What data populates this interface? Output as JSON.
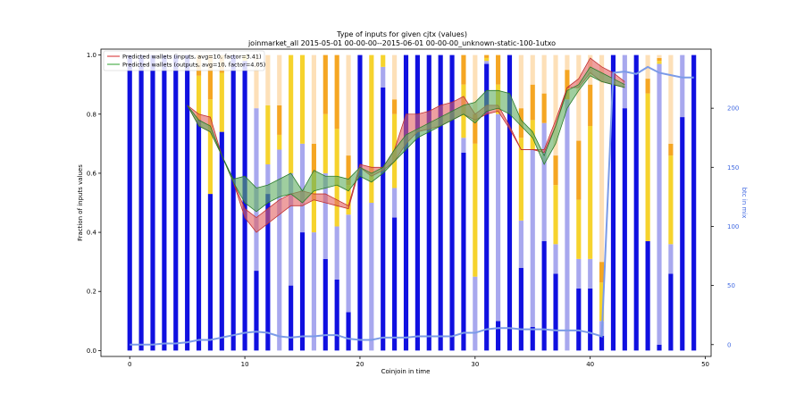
{
  "chart_data": {
    "type": "bar",
    "title": "Type of inputs for given cjtx (values)",
    "subtitle": "joinmarket_all 2015-05-01 00-00-00--2015-06-01 00-00-00_unknown-static-100-1utxo",
    "xlabel": "Coinjoin in time",
    "ylabel": "Fraction of inputs values",
    "ylabel_right": "btc in mix",
    "xlim": [
      -2.5,
      50.5
    ],
    "ylim": [
      -0.02,
      1.02
    ],
    "ylim_right": [
      -10,
      250
    ],
    "x_ticks": [
      0,
      10,
      20,
      30,
      40,
      50
    ],
    "y_ticks": [
      "0.0",
      "0.2",
      "0.4",
      "0.6",
      "0.8",
      "1.0"
    ],
    "y_ticks_right": [
      0,
      50,
      100,
      150,
      200
    ],
    "grid": false,
    "legend_position": "top-left",
    "legend": [
      {
        "label": "Predicted wallets (inputs, avg=10, factor=3.41)",
        "color": "#d62728"
      },
      {
        "label": "Predicted wallets (outputs, avg=10, factor=4.05)",
        "color": "#2ca02c"
      }
    ],
    "colors": {
      "fresh": "#1010e0",
      "remixed": "#a8a8ee",
      "yellow": "#f6d32d",
      "orange": "#f5a623",
      "peach": "#fde0b8",
      "inputs_band": "#e26060",
      "outputs_band": "#5fae5f",
      "btc_line": "#7b9be8"
    },
    "stacked_bars": {
      "series_order": [
        "fresh",
        "remixed",
        "yellow",
        "orange",
        "peach"
      ],
      "data": [
        [
          1.0,
          0,
          0,
          0,
          0
        ],
        [
          1.0,
          0,
          0,
          0,
          0
        ],
        [
          1.0,
          0,
          0,
          0,
          0
        ],
        [
          1.0,
          0,
          0,
          0,
          0
        ],
        [
          1.0,
          0,
          0,
          0,
          0
        ],
        [
          1.0,
          0,
          0,
          0,
          0
        ],
        [
          0.78,
          0,
          0.15,
          0.07,
          0
        ],
        [
          0.53,
          0,
          0.32,
          0.15,
          0
        ],
        [
          0.74,
          0,
          0.2,
          0.06,
          0
        ],
        [
          1.0,
          0,
          0,
          0,
          0
        ],
        [
          0.98,
          0,
          0.02,
          0,
          0
        ],
        [
          0.27,
          0.55,
          0,
          0,
          0.18
        ],
        [
          0.53,
          0.1,
          0.2,
          0,
          0.17
        ],
        [
          0.0,
          0.68,
          0.05,
          0.1,
          0.17
        ],
        [
          0.22,
          0.38,
          0.4,
          0,
          0
        ],
        [
          0.4,
          0.3,
          0.3,
          0,
          0
        ],
        [
          0.0,
          0.4,
          0.2,
          0.1,
          0.3
        ],
        [
          0.31,
          0.29,
          0.2,
          0.2,
          0
        ],
        [
          0.24,
          0.18,
          0.33,
          0.25,
          0
        ],
        [
          0.13,
          0.33,
          0.1,
          0.1,
          0.34
        ],
        [
          1.0,
          0,
          0,
          0,
          0
        ],
        [
          0.0,
          0.5,
          0.5,
          0,
          0
        ],
        [
          0.89,
          0.07,
          0.04,
          0,
          0
        ],
        [
          0.45,
          0.1,
          0.25,
          0.05,
          0.15
        ],
        [
          1.0,
          0,
          0,
          0,
          0
        ],
        [
          1.0,
          0,
          0,
          0,
          0
        ],
        [
          1.0,
          0,
          0,
          0,
          0
        ],
        [
          1.0,
          0,
          0,
          0,
          0
        ],
        [
          1.0,
          0,
          0,
          0,
          0
        ],
        [
          0.67,
          0.05,
          0.18,
          0.1,
          0
        ],
        [
          0.0,
          0.25,
          0.45,
          0.1,
          0.2
        ],
        [
          0.97,
          0.01,
          0.01,
          0.01,
          0
        ],
        [
          0.1,
          0.7,
          0.1,
          0.1,
          0
        ],
        [
          1.0,
          0,
          0,
          0,
          0
        ],
        [
          0.28,
          0.16,
          0.28,
          0.1,
          0.18
        ],
        [
          0.08,
          0.6,
          0.1,
          0.12,
          0.1
        ],
        [
          0.37,
          0.4,
          0,
          0.1,
          0.13
        ],
        [
          0.26,
          0.1,
          0.2,
          0.1,
          0.34
        ],
        [
          0.0,
          0.85,
          0,
          0.1,
          0.05
        ],
        [
          0.21,
          0.1,
          0.2,
          0.2,
          0.29
        ],
        [
          0.21,
          0.1,
          0.45,
          0.14,
          0.1
        ],
        [
          0.05,
          0.05,
          0.13,
          0.07,
          0.7
        ],
        [
          1.0,
          0,
          0,
          0,
          0
        ],
        [
          0.82,
          0.18,
          0,
          0,
          0
        ],
        [
          1.0,
          0,
          0,
          0,
          0
        ],
        [
          0.37,
          0,
          0.5,
          0.05,
          0.08
        ],
        [
          0.02,
          0.95,
          0.01,
          0.01,
          0.01
        ],
        [
          0.26,
          0.1,
          0.3,
          0.04,
          0.3
        ],
        [
          0.79,
          0.21,
          0,
          0,
          0
        ],
        [
          1.0,
          0,
          0,
          0,
          0
        ]
      ]
    },
    "inputs_band": {
      "x": [
        5,
        6,
        7,
        8,
        9,
        10,
        11,
        12,
        13,
        14,
        15,
        16,
        17,
        18,
        19,
        20,
        21,
        22,
        23,
        24,
        25,
        26,
        27,
        28,
        29,
        30,
        31,
        32,
        33,
        34,
        35,
        36,
        37,
        38,
        39,
        40,
        41,
        42,
        43
      ],
      "upper": [
        0.83,
        0.8,
        0.79,
        0.66,
        0.57,
        0.48,
        0.45,
        0.48,
        0.51,
        0.53,
        0.54,
        0.53,
        0.53,
        0.51,
        0.49,
        0.63,
        0.62,
        0.62,
        0.68,
        0.8,
        0.8,
        0.81,
        0.83,
        0.84,
        0.86,
        0.8,
        0.83,
        0.83,
        0.76,
        0.68,
        0.68,
        0.68,
        0.78,
        0.89,
        0.92,
        0.99,
        0.96,
        0.94,
        0.91
      ],
      "lower": [
        0.83,
        0.76,
        0.74,
        0.66,
        0.57,
        0.45,
        0.4,
        0.43,
        0.46,
        0.49,
        0.49,
        0.51,
        0.5,
        0.49,
        0.48,
        0.62,
        0.59,
        0.61,
        0.64,
        0.7,
        0.74,
        0.75,
        0.76,
        0.78,
        0.8,
        0.78,
        0.8,
        0.81,
        0.75,
        0.68,
        0.68,
        0.67,
        0.76,
        0.89,
        0.89,
        0.94,
        0.91,
        0.9,
        0.89
      ]
    },
    "outputs_band": {
      "x": [
        5,
        6,
        7,
        8,
        9,
        10,
        11,
        12,
        13,
        14,
        15,
        16,
        17,
        18,
        19,
        20,
        21,
        22,
        23,
        24,
        25,
        26,
        27,
        28,
        29,
        30,
        31,
        32,
        33,
        34,
        35,
        36,
        37,
        38,
        39,
        40,
        41,
        42,
        43
      ],
      "upper": [
        0.83,
        0.78,
        0.76,
        0.66,
        0.58,
        0.59,
        0.55,
        0.56,
        0.58,
        0.6,
        0.54,
        0.61,
        0.59,
        0.59,
        0.58,
        0.62,
        0.6,
        0.62,
        0.68,
        0.73,
        0.75,
        0.77,
        0.79,
        0.81,
        0.83,
        0.84,
        0.88,
        0.88,
        0.87,
        0.78,
        0.74,
        0.66,
        0.76,
        0.88,
        0.9,
        0.96,
        0.94,
        0.92,
        0.9
      ],
      "lower": [
        0.83,
        0.76,
        0.74,
        0.66,
        0.57,
        0.5,
        0.47,
        0.5,
        0.52,
        0.53,
        0.5,
        0.54,
        0.55,
        0.56,
        0.54,
        0.59,
        0.57,
        0.6,
        0.64,
        0.68,
        0.72,
        0.74,
        0.76,
        0.78,
        0.8,
        0.77,
        0.81,
        0.82,
        0.8,
        0.76,
        0.72,
        0.63,
        0.7,
        0.82,
        0.88,
        0.93,
        0.91,
        0.9,
        0.89
      ]
    },
    "btc_in_mix": {
      "x": [
        0,
        1,
        2,
        3,
        4,
        5,
        6,
        7,
        8,
        9,
        10,
        11,
        12,
        13,
        14,
        15,
        16,
        17,
        18,
        19,
        20,
        21,
        22,
        23,
        24,
        25,
        26,
        27,
        28,
        29,
        30,
        31,
        32,
        33,
        34,
        35,
        36,
        37,
        38,
        39,
        40,
        41,
        42,
        43,
        44,
        45,
        46,
        47,
        48,
        49
      ],
      "values": [
        0,
        0,
        0,
        1,
        1,
        2,
        4,
        4,
        6,
        8,
        10,
        11,
        10,
        7,
        6,
        7,
        7,
        8,
        8,
        5,
        4,
        4,
        6,
        6,
        6,
        7,
        7,
        7,
        7,
        10,
        10,
        13,
        14,
        14,
        13,
        13,
        13,
        12,
        12,
        12,
        10,
        7,
        230,
        231,
        229,
        235,
        230,
        228,
        226,
        226
      ]
    }
  }
}
